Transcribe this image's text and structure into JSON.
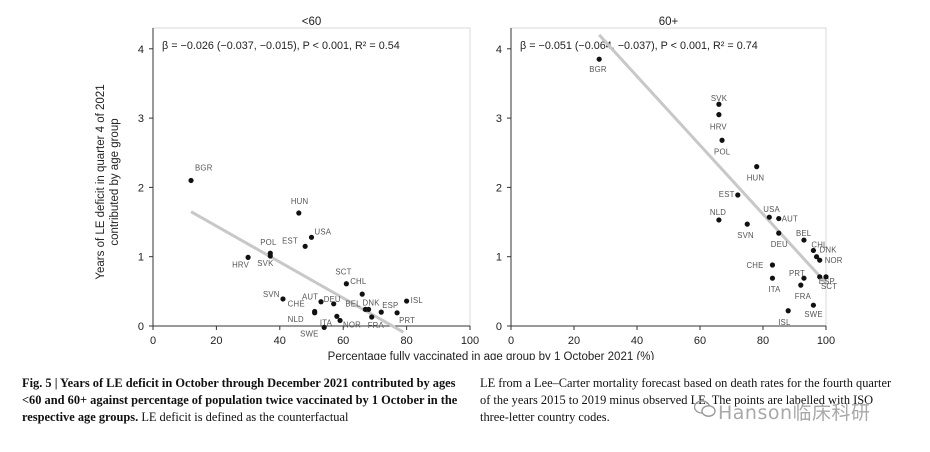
{
  "shared_x_label": "Percentage fully vaccinated in age group by 1 October 2021 (%)",
  "chart_data": [
    {
      "type": "scatter",
      "title": "<60",
      "subtitle": "β = −0.026 (−0.037, −0.015), P < 0.001, R² = 0.54",
      "ylabel": "Years of LE deficit in quarter 4 of 2021 contributed by age group",
      "xlim": [
        0,
        100
      ],
      "ylim": [
        0,
        4.3
      ],
      "x_ticks": [
        0,
        20,
        40,
        60,
        80,
        100
      ],
      "y_ticks": [
        0,
        1,
        2,
        3,
        4
      ],
      "fit_line": {
        "x": [
          12,
          79
        ],
        "y": [
          1.65,
          -0.09
        ]
      },
      "points": [
        {
          "label": "BGR",
          "x": 12,
          "y": 2.1
        },
        {
          "label": "HUN",
          "x": 46,
          "y": 1.63
        },
        {
          "label": "USA",
          "x": 50,
          "y": 1.28
        },
        {
          "label": "EST",
          "x": 48,
          "y": 1.15
        },
        {
          "label": "POL",
          "x": 37,
          "y": 1.05
        },
        {
          "label": "HRV",
          "x": 30,
          "y": 0.99
        },
        {
          "label": "SVK",
          "x": 37,
          "y": 1.01
        },
        {
          "label": "SCT",
          "x": 61,
          "y": 0.61
        },
        {
          "label": "CHL",
          "x": 66,
          "y": 0.46
        },
        {
          "label": "SVN",
          "x": 41,
          "y": 0.39
        },
        {
          "label": "AUT",
          "x": 53,
          "y": 0.35
        },
        {
          "label": "DEU",
          "x": 57,
          "y": 0.32
        },
        {
          "label": "CHE",
          "x": 51,
          "y": 0.21
        },
        {
          "label": "NLD",
          "x": 51,
          "y": 0.19
        },
        {
          "label": "ITA",
          "x": 58,
          "y": 0.14
        },
        {
          "label": "BEL",
          "x": 67,
          "y": 0.24
        },
        {
          "label": "DNK",
          "x": 68,
          "y": 0.24
        },
        {
          "label": "ESP",
          "x": 72,
          "y": 0.2
        },
        {
          "label": "ISL",
          "x": 80,
          "y": 0.36
        },
        {
          "label": "PRT",
          "x": 77,
          "y": 0.19
        },
        {
          "label": "NOR",
          "x": 59,
          "y": 0.08
        },
        {
          "label": "FRA",
          "x": 69,
          "y": 0.13
        },
        {
          "label": "SWE",
          "x": 54,
          "y": -0.02
        }
      ]
    },
    {
      "type": "scatter",
      "title": "60+",
      "subtitle": "β = −0.051 (−0.064, −0.037), P < 0.001, R² = 0.74",
      "xlim": [
        0,
        100
      ],
      "ylim": [
        0,
        4.3
      ],
      "x_ticks": [
        0,
        20,
        40,
        60,
        80,
        100
      ],
      "y_ticks": [
        0,
        1,
        2,
        3,
        4
      ],
      "fit_line": {
        "x": [
          28,
          100
        ],
        "y": [
          4.2,
          0.62
        ]
      },
      "points": [
        {
          "label": "BGR",
          "x": 28,
          "y": 3.85
        },
        {
          "label": "SVK",
          "x": 66,
          "y": 3.2
        },
        {
          "label": "HRV",
          "x": 66,
          "y": 3.05
        },
        {
          "label": "POL",
          "x": 67,
          "y": 2.68
        },
        {
          "label": "HUN",
          "x": 78,
          "y": 2.3
        },
        {
          "label": "EST",
          "x": 72,
          "y": 1.89
        },
        {
          "label": "NLD",
          "x": 66,
          "y": 1.53
        },
        {
          "label": "USA",
          "x": 82,
          "y": 1.57
        },
        {
          "label": "AUT",
          "x": 85,
          "y": 1.55
        },
        {
          "label": "SVN",
          "x": 75,
          "y": 1.47
        },
        {
          "label": "DEU",
          "x": 85,
          "y": 1.34
        },
        {
          "label": "BEL",
          "x": 93,
          "y": 1.24
        },
        {
          "label": "CHL",
          "x": 96,
          "y": 1.09
        },
        {
          "label": "DNK",
          "x": 97,
          "y": 1.0
        },
        {
          "label": "NOR",
          "x": 98,
          "y": 0.95
        },
        {
          "label": "CHE",
          "x": 83,
          "y": 0.88
        },
        {
          "label": "PRT",
          "x": 93,
          "y": 0.69
        },
        {
          "label": "ESP",
          "x": 98,
          "y": 0.71
        },
        {
          "label": "SCT",
          "x": 100,
          "y": 0.71
        },
        {
          "label": "ITA",
          "x": 83,
          "y": 0.69
        },
        {
          "label": "FRA",
          "x": 92,
          "y": 0.59
        },
        {
          "label": "SWE",
          "x": 96,
          "y": 0.3
        },
        {
          "label": "ISL",
          "x": 88,
          "y": 0.22
        }
      ]
    }
  ],
  "caption": {
    "fig_label": "Fig. 5 | Years of LE deficit in October through December 2021 contributed by ages <60 and 60+ against percentage of population twice vaccinated by 1 October in the respective age groups.",
    "text_left": " LE deficit is defined as the counterfactual",
    "text_right": "LE from a Lee–Carter mortality forecast based on death rates for the fourth quarter of the years 2015 to 2019 minus observed LE. The points are labelled with ISO three-letter country codes."
  },
  "watermark": "Hanson临床科研"
}
